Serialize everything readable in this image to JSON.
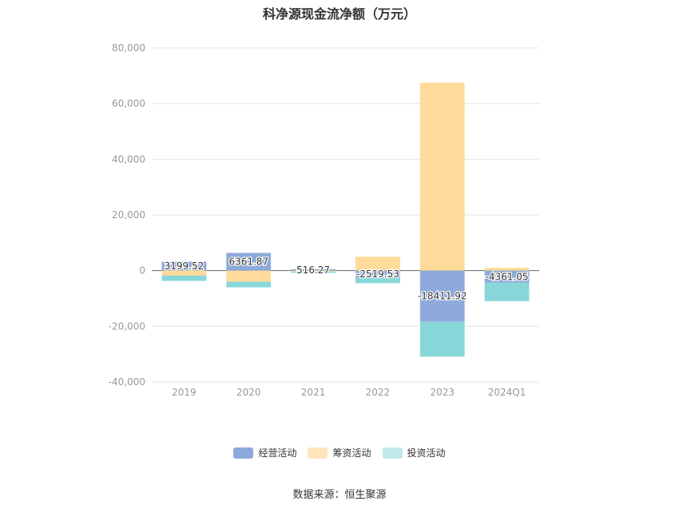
{
  "chart_data": {
    "type": "bar",
    "stacked": true,
    "title": "科净源现金流净额（万元）",
    "xlabel": "",
    "ylabel": "",
    "categories": [
      "2019",
      "2020",
      "2021",
      "2022",
      "2023",
      "2024Q1"
    ],
    "ylim": [
      -40000,
      80000
    ],
    "yticks": [
      80000,
      60000,
      40000,
      20000,
      0,
      -20000,
      -40000
    ],
    "ytick_labels": [
      "80,000",
      "60,000",
      "40,000",
      "20,000",
      "0",
      "-20,000",
      "-40,000"
    ],
    "grid": true,
    "legend_position": "bottom",
    "series": [
      {
        "name": "经营活动",
        "color": "#8eaadb",
        "values": [
          3199.52,
          6361.87,
          516.27,
          -2519.53,
          -18411.92,
          -4361.05
        ]
      },
      {
        "name": "筹资活动",
        "color": "#fedb9b",
        "values": [
          -1800,
          -4000,
          -300,
          5000,
          67500,
          1000
        ]
      },
      {
        "name": "投资活动",
        "color": "#87d7d9",
        "values": [
          -1900,
          -2000,
          -500,
          -2000,
          -12500,
          -6600
        ]
      }
    ],
    "data_labels": [
      "3199.52",
      "6361.87",
      "516.27",
      "-2519.53",
      "-18411.92",
      "-4361.05"
    ],
    "source": "数据来源：恒生聚源"
  },
  "legend": {
    "items": [
      "经营活动",
      "筹资活动",
      "投资活动"
    ],
    "colors": [
      "#8eaadb",
      "#fee5bd",
      "#bfe8ea"
    ]
  }
}
